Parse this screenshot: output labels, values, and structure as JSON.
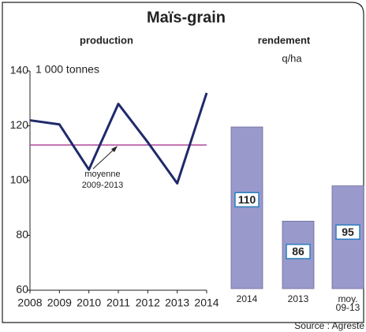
{
  "title": "Maïs-grain",
  "source": "Source : Agreste",
  "chart_data": [
    {
      "type": "line",
      "title": "production",
      "y_label": "1 000 tonnes",
      "x": [
        2008,
        2009,
        2010,
        2011,
        2012,
        2013,
        2014
      ],
      "xlim": [
        2008,
        2014
      ],
      "xticks": [
        2008,
        2009,
        2010,
        2011,
        2012,
        2013,
        2014
      ],
      "ylim": [
        60,
        140
      ],
      "yticks": [
        60,
        80,
        100,
        120,
        140
      ],
      "series": [
        {
          "name": "production",
          "color": "#1f2a6b",
          "values": [
            122,
            120.5,
            104,
            128,
            114,
            99,
            132
          ]
        }
      ],
      "reference_line": {
        "value": 113,
        "color": "#b0479a",
        "label": "moyenne 2009-2013"
      }
    },
    {
      "type": "bar",
      "title": "rendement",
      "y_label": "q/ha",
      "categories": [
        "2014",
        "2013",
        "moy. 09-13"
      ],
      "values": [
        110,
        86,
        95
      ],
      "color": "#9999cc"
    }
  ]
}
